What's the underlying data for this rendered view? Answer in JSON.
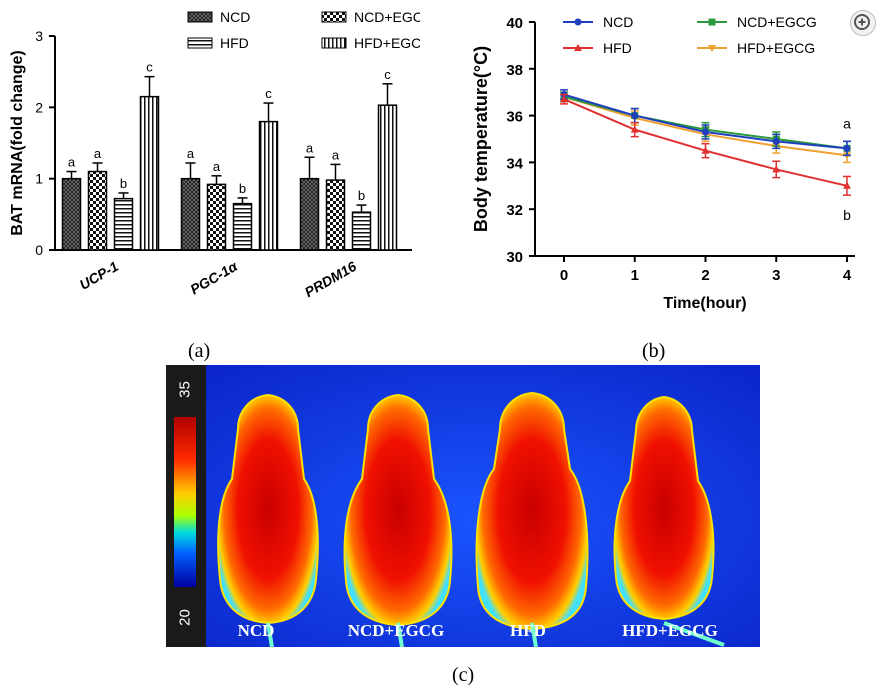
{
  "panels": {
    "a": "(a)",
    "b": "(b)",
    "c": "(c)"
  },
  "chart_a": {
    "type": "bar",
    "ylabel": "BAT mRNA(fold change)",
    "ylim": [
      0,
      3
    ],
    "yticks": [
      "0",
      "1",
      "2",
      "3"
    ],
    "categories": [
      "UCP-1",
      "PGC-1α",
      "PRDM16"
    ],
    "legend": [
      "NCD",
      "NCD+EGCG",
      "HFD",
      "HFD+EGCG"
    ],
    "legend_position": "top",
    "series": [
      {
        "name": "NCD",
        "pattern": "crosshatch",
        "values": [
          1.0,
          1.0,
          1.0
        ],
        "errors": [
          0.1,
          0.22,
          0.3
        ],
        "letters": [
          "a",
          "a",
          "a"
        ]
      },
      {
        "name": "NCD+EGCG",
        "pattern": "checker",
        "values": [
          1.1,
          0.92,
          0.98
        ],
        "errors": [
          0.12,
          0.12,
          0.22
        ],
        "letters": [
          "a",
          "a",
          "a"
        ]
      },
      {
        "name": "HFD",
        "pattern": "horizontal",
        "values": [
          0.72,
          0.65,
          0.53
        ],
        "errors": [
          0.08,
          0.08,
          0.1
        ],
        "letters": [
          "b",
          "b",
          "b"
        ]
      },
      {
        "name": "HFD+EGCG",
        "pattern": "vertical",
        "values": [
          2.15,
          1.8,
          2.03
        ],
        "errors": [
          0.28,
          0.26,
          0.3
        ],
        "letters": [
          "c",
          "c",
          "c"
        ]
      }
    ]
  },
  "chart_b": {
    "type": "line",
    "xlabel": "Time(hour)",
    "ylabel": "Body temperature(°C)",
    "x": [
      0,
      1,
      2,
      3,
      4
    ],
    "xticks": [
      "0",
      "1",
      "2",
      "3",
      "4"
    ],
    "ylim": [
      30,
      40
    ],
    "yticks": [
      "30",
      "32",
      "34",
      "36",
      "38",
      "40"
    ],
    "legend_position": "top",
    "series": [
      {
        "name": "NCD",
        "color": "#1f3fbf",
        "marker": "circle",
        "values": [
          36.9,
          36.0,
          35.3,
          34.9,
          34.6
        ],
        "errors": [
          0.2,
          0.3,
          0.3,
          0.3,
          0.3
        ]
      },
      {
        "name": "NCD+EGCG",
        "color": "#2a9a3a",
        "marker": "square",
        "values": [
          36.8,
          36.0,
          35.4,
          35.0,
          34.6
        ],
        "errors": [
          0.2,
          0.3,
          0.3,
          0.3,
          0.3
        ]
      },
      {
        "name": "HFD",
        "color": "#e03030",
        "marker": "triangle",
        "values": [
          36.7,
          35.4,
          34.5,
          33.7,
          33.0
        ],
        "errors": [
          0.2,
          0.3,
          0.3,
          0.35,
          0.4
        ]
      },
      {
        "name": "HFD+EGCG",
        "color": "#f0a030",
        "marker": "triangle-down",
        "values": [
          36.8,
          35.9,
          35.2,
          34.7,
          34.3
        ],
        "errors": [
          0.2,
          0.3,
          0.3,
          0.3,
          0.3
        ]
      }
    ],
    "annotations": [
      "a",
      "b"
    ]
  },
  "thermal": {
    "scale_max": "35",
    "scale_min": "20",
    "labels": [
      "NCD",
      "NCD+EGCG",
      "HFD",
      "HFD+EGCG"
    ]
  }
}
